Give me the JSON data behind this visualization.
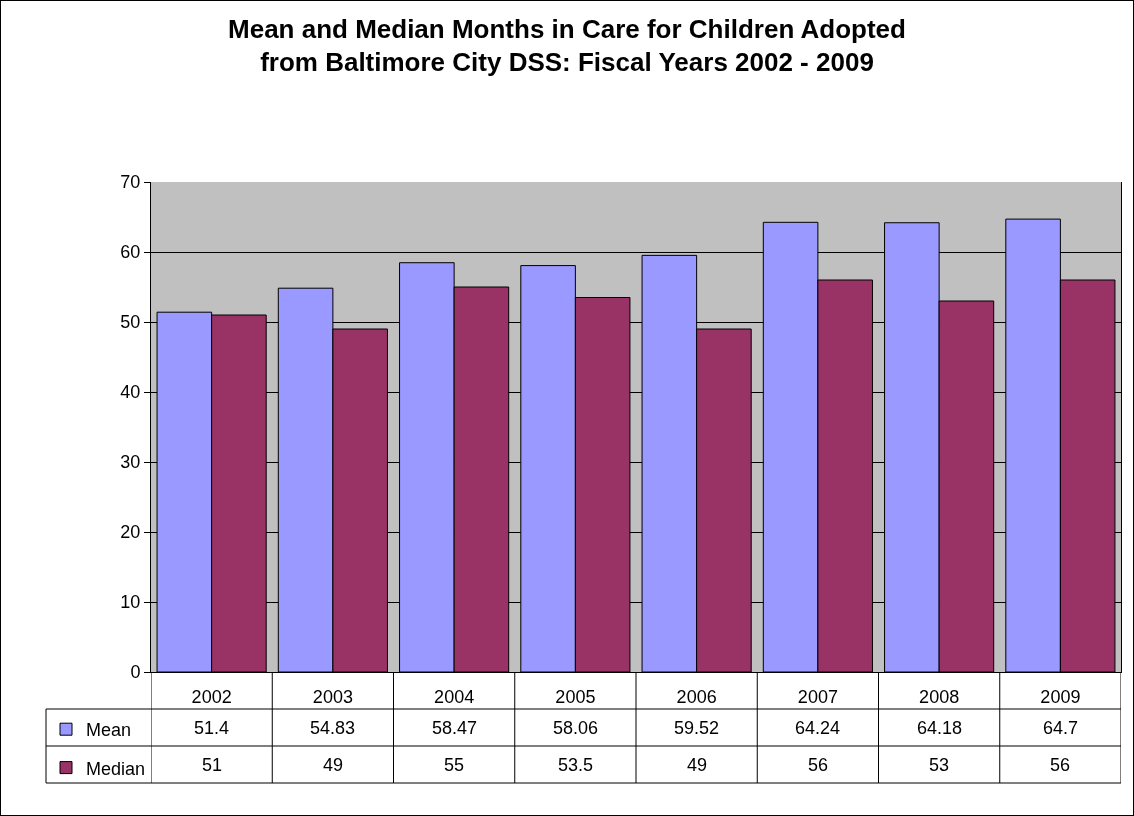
{
  "chart_data": {
    "type": "bar",
    "title": "Mean and Median Months in Care for Children Adopted\nfrom Baltimore City DSS: Fiscal Years 2002 - 2009",
    "categories": [
      "2002",
      "2003",
      "2004",
      "2005",
      "2006",
      "2007",
      "2008",
      "2009"
    ],
    "series": [
      {
        "name": "Mean",
        "color": "#9999ff",
        "values": [
          51.4,
          54.83,
          58.47,
          58.06,
          59.52,
          64.24,
          64.18,
          64.7
        ]
      },
      {
        "name": "Median",
        "color": "#993366",
        "values": [
          51,
          49,
          55,
          53.5,
          49,
          56,
          53,
          56
        ]
      }
    ],
    "ylim": [
      0,
      70
    ],
    "yticks": [
      0,
      10,
      20,
      30,
      40,
      50,
      60,
      70
    ],
    "grid": "y",
    "legend": "bottom left",
    "data_labels": true
  }
}
